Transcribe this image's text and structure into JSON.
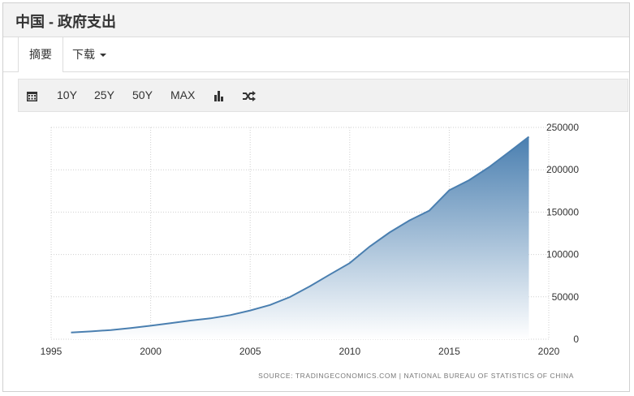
{
  "header": {
    "title": "中国 - 政府支出"
  },
  "tabs": [
    {
      "label": "摘要"
    },
    {
      "label": "下载"
    }
  ],
  "toolbar": {
    "calendar_icon": "calendar-icon",
    "buttons": [
      "10Y",
      "25Y",
      "50Y",
      "MAX"
    ],
    "bar_icon": "bar-chart-icon",
    "shuffle_icon": "shuffle-icon"
  },
  "chart_data": {
    "type": "area",
    "title": "",
    "xlabel": "",
    "ylabel": "",
    "xlim": [
      1995,
      2020
    ],
    "ylim": [
      0,
      250000
    ],
    "x_ticks": [
      1995,
      2000,
      2005,
      2010,
      2015,
      2020
    ],
    "y_ticks": [
      0,
      50000,
      100000,
      150000,
      200000,
      250000
    ],
    "grid": true,
    "x": [
      1996,
      1997,
      1998,
      1999,
      2000,
      2001,
      2002,
      2003,
      2004,
      2005,
      2006,
      2007,
      2008,
      2009,
      2010,
      2011,
      2012,
      2013,
      2014,
      2015,
      2016,
      2017,
      2018,
      2019
    ],
    "values": [
      7938,
      9234,
      10798,
      13188,
      15887,
      18903,
      22053,
      24650,
      28487,
      33930,
      40423,
      49781,
      62593,
      76300,
      89874,
      109248,
      125953,
      140212,
      151786,
      175878,
      187755,
      203085,
      220904,
      238874
    ],
    "colors": {
      "line": "#4a7fb0",
      "fill_top": "#4a7fb0",
      "fill_bottom": "#ffffff"
    },
    "source": "SOURCE: TRADINGECONOMICS.COM | NATIONAL BUREAU OF STATISTICS OF CHINA"
  }
}
